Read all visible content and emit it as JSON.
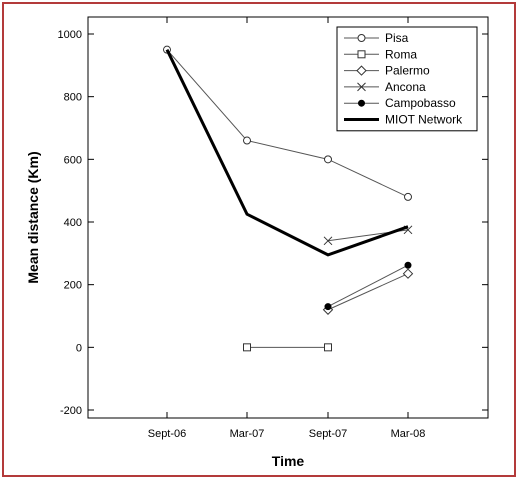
{
  "chart_data": {
    "type": "line",
    "title": "",
    "xlabel": "Time",
    "ylabel": "Mean distance (Km)",
    "categories": [
      "Sept-06",
      "Mar-07",
      "Sept-07",
      "Mar-08"
    ],
    "ylim": [
      -200,
      1000
    ],
    "yticks": [
      -200,
      0,
      200,
      400,
      600,
      800,
      1000
    ],
    "grid": false,
    "legend_position": "top-right",
    "series": [
      {
        "name": "Pisa",
        "marker": "circle-open",
        "line_width": 1,
        "values": [
          950,
          660,
          600,
          480
        ]
      },
      {
        "name": "Roma",
        "marker": "square-open",
        "line_width": 1,
        "values": [
          null,
          0,
          0,
          null
        ]
      },
      {
        "name": "Palermo",
        "marker": "diamond-open",
        "line_width": 1,
        "values": [
          null,
          null,
          120,
          235
        ]
      },
      {
        "name": "Ancona",
        "marker": "cross",
        "line_width": 1,
        "values": [
          null,
          null,
          340,
          375
        ]
      },
      {
        "name": "Campobasso",
        "marker": "dot-filled",
        "line_width": 1,
        "values": [
          null,
          null,
          130,
          262
        ]
      },
      {
        "name": "MIOT Network",
        "marker": "none",
        "line_width": 3,
        "values": [
          950,
          425,
          295,
          385
        ]
      }
    ],
    "colors": {
      "line": "#555555",
      "network": "#000000",
      "frame_border": "#b33a3a"
    }
  }
}
